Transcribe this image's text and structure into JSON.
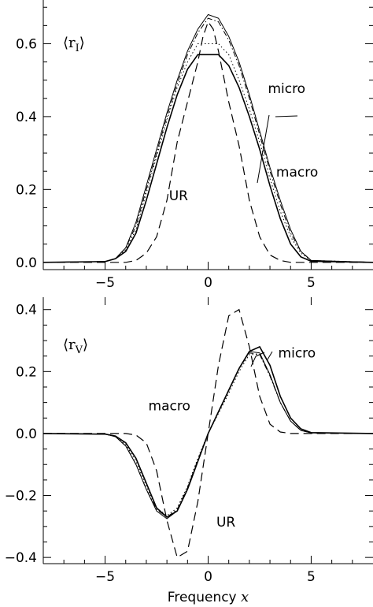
{
  "chart_data": [
    {
      "type": "line",
      "panel_label": "⟨r_I⟩",
      "panel_label_main": "⟨r",
      "panel_label_sub": "I",
      "panel_label_close": "⟩",
      "xlabel": "",
      "ylabel": "",
      "xlim": [
        -8,
        8
      ],
      "ylim": [
        -0.02,
        0.72
      ],
      "xticks": [
        -5,
        0,
        5
      ],
      "xtick_labels": [
        "−5",
        "0",
        "5"
      ],
      "yticks": [
        0.0,
        0.2,
        0.4,
        0.6
      ],
      "ytick_labels": [
        "0.0",
        "0.2",
        "0.4",
        "0.6"
      ],
      "annotations": [
        {
          "text": "micro",
          "x": 2.9,
          "y": 0.465
        },
        {
          "text": "macro",
          "x": 3.3,
          "y": 0.235
        },
        {
          "text": "UR",
          "x": -1.9,
          "y": 0.17
        }
      ],
      "series": [
        {
          "style": "solid-thin",
          "x": [
            -8,
            -5,
            -4.5,
            -4,
            -3.5,
            -3,
            -2.5,
            -2,
            -1.5,
            -1,
            -0.5,
            0,
            0.5,
            1,
            1.5,
            2,
            2.5,
            3,
            3.5,
            4,
            4.5,
            5,
            8
          ],
          "y": [
            0.0,
            0.002,
            0.01,
            0.04,
            0.11,
            0.21,
            0.31,
            0.41,
            0.5,
            0.58,
            0.64,
            0.68,
            0.67,
            0.62,
            0.55,
            0.46,
            0.36,
            0.26,
            0.17,
            0.09,
            0.03,
            0.005,
            0.0
          ]
        },
        {
          "style": "dash-dot",
          "x": [
            -8,
            -5,
            -4.5,
            -4,
            -3.5,
            -3,
            -2.5,
            -2,
            -1.5,
            -1,
            -0.5,
            0,
            0.5,
            1,
            1.5,
            2,
            2.5,
            3,
            3.5,
            4,
            4.5,
            5,
            8
          ],
          "y": [
            0.0,
            0.002,
            0.01,
            0.04,
            0.1,
            0.2,
            0.3,
            0.4,
            0.49,
            0.57,
            0.63,
            0.67,
            0.66,
            0.61,
            0.54,
            0.45,
            0.35,
            0.25,
            0.16,
            0.08,
            0.03,
            0.005,
            0.0
          ]
        },
        {
          "style": "dotted",
          "x": [
            -8,
            -5,
            -4.5,
            -4,
            -3.5,
            -3,
            -2.5,
            -2,
            -1.5,
            -1,
            -0.5,
            0,
            0.5,
            1,
            1.5,
            2,
            2.5,
            3,
            3.5,
            4,
            4.5,
            5,
            8
          ],
          "y": [
            0.0,
            0.002,
            0.01,
            0.035,
            0.09,
            0.19,
            0.29,
            0.39,
            0.48,
            0.55,
            0.6,
            0.6,
            0.6,
            0.57,
            0.5,
            0.42,
            0.33,
            0.23,
            0.14,
            0.07,
            0.025,
            0.005,
            0.0
          ]
        },
        {
          "style": "solid",
          "x": [
            -8,
            -5,
            -4.5,
            -4,
            -3.5,
            -3,
            -2.5,
            -2,
            -1.5,
            -1,
            -0.5,
            0,
            0.5,
            1,
            1.5,
            2,
            2.5,
            3,
            3.5,
            4,
            4.5,
            5,
            8
          ],
          "y": [
            0.0,
            0.002,
            0.01,
            0.03,
            0.08,
            0.17,
            0.27,
            0.37,
            0.46,
            0.53,
            0.57,
            0.57,
            0.57,
            0.54,
            0.48,
            0.4,
            0.31,
            0.21,
            0.12,
            0.05,
            0.015,
            0.003,
            0.0
          ]
        },
        {
          "style": "dashed",
          "x": [
            -8,
            -4,
            -3.5,
            -3,
            -2.5,
            -2,
            -1.5,
            -1,
            -0.5,
            -0.25,
            0,
            0.25,
            0.5,
            1,
            1.5,
            2,
            2.5,
            3,
            3.5,
            4,
            8
          ],
          "y": [
            0.0,
            0.0,
            0.005,
            0.025,
            0.07,
            0.17,
            0.33,
            0.44,
            0.55,
            0.62,
            0.66,
            0.64,
            0.58,
            0.44,
            0.32,
            0.17,
            0.07,
            0.02,
            0.005,
            0.0,
            0.0
          ]
        }
      ]
    },
    {
      "type": "line",
      "panel_label": "⟨r_V⟩",
      "panel_label_main": "⟨r",
      "panel_label_sub": "V",
      "panel_label_close": "⟩",
      "xlabel": "Frequency",
      "xlabel_var": "x",
      "ylabel": "",
      "xlim": [
        -8,
        8
      ],
      "ylim": [
        -0.42,
        0.44
      ],
      "xticks": [
        -5,
        0,
        5
      ],
      "xtick_labels": [
        "−5",
        "0",
        "5"
      ],
      "yticks": [
        -0.4,
        -0.2,
        0.0,
        0.2,
        0.4
      ],
      "ytick_labels": [
        "−0.4",
        "−0.2",
        "0.0",
        "0.2",
        "0.4"
      ],
      "annotations": [
        {
          "text": "micro",
          "x": 3.4,
          "y": 0.245
        },
        {
          "text": "macro",
          "x": -2.9,
          "y": 0.075
        },
        {
          "text": "UR",
          "x": 0.4,
          "y": -0.3
        }
      ],
      "series": [
        {
          "style": "solid-thin",
          "x": [
            -8,
            -5,
            -4.5,
            -4,
            -3.5,
            -3,
            -2.5,
            -2,
            -1.5,
            -1,
            -0.5,
            0,
            0.5,
            1,
            1.5,
            2,
            2.5,
            3,
            3.5,
            4,
            4.5,
            5,
            8
          ],
          "y": [
            0.0,
            -0.002,
            -0.01,
            -0.04,
            -0.1,
            -0.18,
            -0.25,
            -0.275,
            -0.25,
            -0.18,
            -0.09,
            0.0,
            0.07,
            0.14,
            0.21,
            0.265,
            0.26,
            0.19,
            0.1,
            0.04,
            0.01,
            0.002,
            0.0
          ]
        },
        {
          "style": "dash-dot",
          "x": [
            -8,
            -5,
            -4.5,
            -4,
            -3.5,
            -3,
            -2.5,
            -2,
            -1.5,
            -1,
            -0.5,
            0,
            0.5,
            1,
            1.5,
            2,
            2.5,
            3,
            3.5,
            4,
            4.5,
            5,
            8
          ],
          "y": [
            0.0,
            -0.002,
            -0.01,
            -0.04,
            -0.1,
            -0.18,
            -0.245,
            -0.27,
            -0.245,
            -0.175,
            -0.085,
            0.0,
            0.07,
            0.14,
            0.21,
            0.26,
            0.255,
            0.185,
            0.1,
            0.04,
            0.01,
            0.002,
            0.0
          ]
        },
        {
          "style": "dotted",
          "x": [
            -8,
            -5,
            -4.5,
            -4,
            -3.5,
            -3,
            -2.5,
            -2,
            -1.5,
            -1,
            -0.5,
            0,
            0.5,
            1,
            1.5,
            2,
            2.5,
            3,
            3.5,
            4,
            4.5,
            5,
            8
          ],
          "y": [
            0.0,
            -0.002,
            -0.01,
            -0.035,
            -0.09,
            -0.17,
            -0.24,
            -0.265,
            -0.24,
            -0.17,
            -0.08,
            0.0,
            0.065,
            0.13,
            0.2,
            0.255,
            0.255,
            0.19,
            0.1,
            0.04,
            0.01,
            0.002,
            0.0
          ]
        },
        {
          "style": "solid",
          "x": [
            -8,
            -5,
            -4.5,
            -4,
            -3.5,
            -3,
            -2.5,
            -2,
            -1.5,
            -1,
            -0.5,
            0,
            0.5,
            1,
            1.5,
            2,
            2.5,
            3,
            3.5,
            4,
            4.5,
            5,
            8
          ],
          "y": [
            0.0,
            -0.002,
            -0.008,
            -0.03,
            -0.08,
            -0.16,
            -0.24,
            -0.27,
            -0.25,
            -0.18,
            -0.09,
            0.0,
            0.07,
            0.14,
            0.21,
            0.265,
            0.28,
            0.22,
            0.12,
            0.05,
            0.015,
            0.003,
            0.0
          ]
        },
        {
          "style": "dashed",
          "x": [
            -8,
            -4,
            -3.5,
            -3,
            -2.5,
            -2,
            -1.5,
            -1,
            -0.5,
            0,
            0.5,
            1,
            1.5,
            2,
            2.5,
            3,
            3.5,
            4,
            8
          ],
          "y": [
            0.0,
            0.0,
            -0.005,
            -0.03,
            -0.12,
            -0.28,
            -0.4,
            -0.38,
            -0.22,
            0.0,
            0.22,
            0.38,
            0.4,
            0.28,
            0.12,
            0.03,
            0.005,
            0.0,
            0.0
          ]
        }
      ]
    }
  ]
}
